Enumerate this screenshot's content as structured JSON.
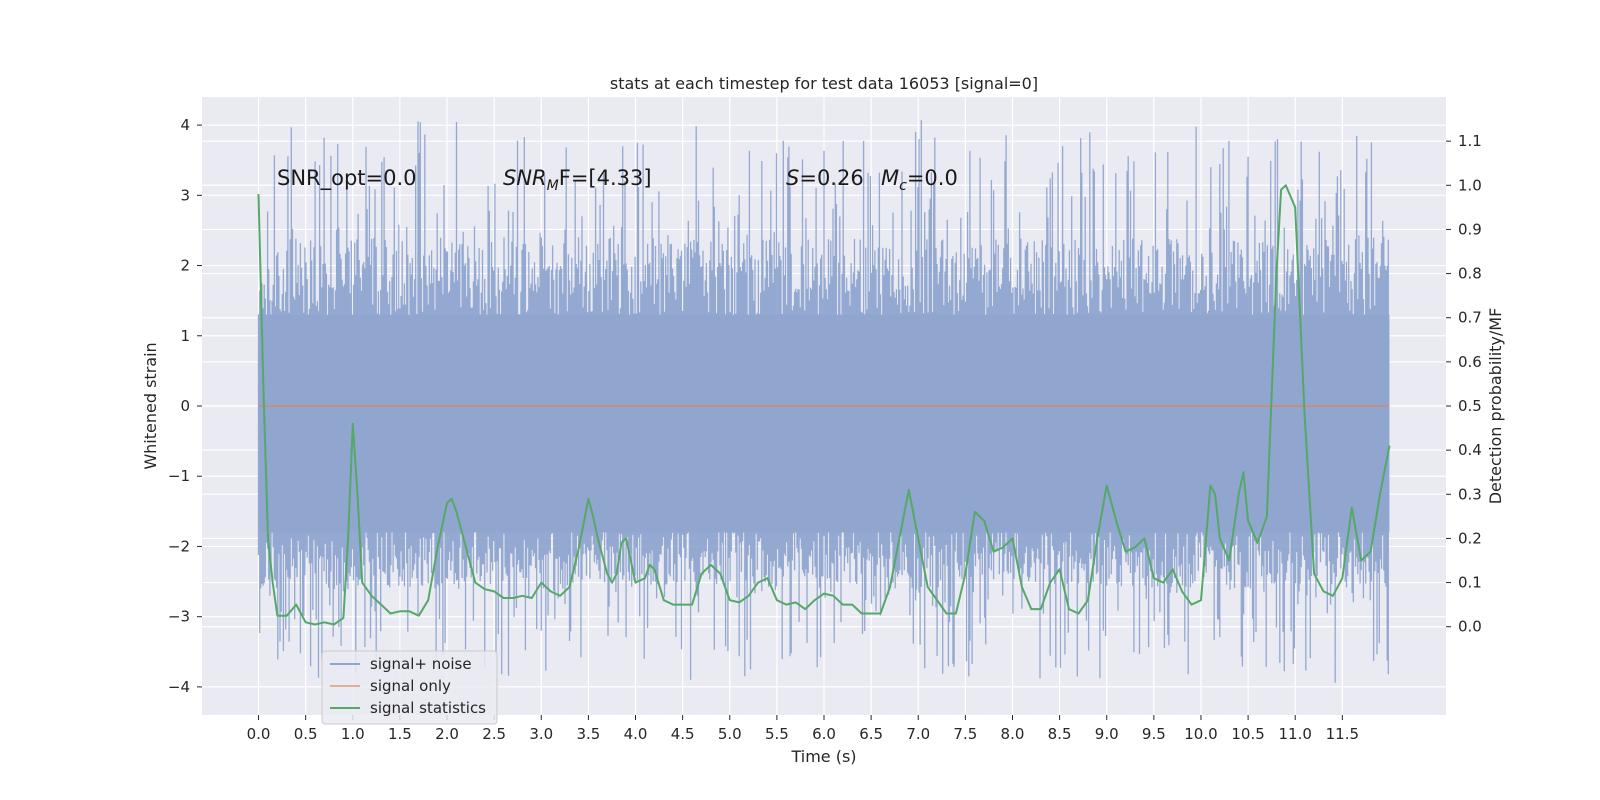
{
  "chart_data": {
    "type": "line",
    "title": "stats at each timestep for test data 16053 [signal=0]",
    "xlabel": "Time (s)",
    "ylabel": "Whitened strain",
    "ylabel_right": "Detection probability/MF",
    "xlim": [
      -0.6,
      12.6
    ],
    "ylim": [
      -4.4,
      4.4
    ],
    "ylim_right": [
      -0.2,
      1.2
    ],
    "x_ticks": [
      0.0,
      0.5,
      1.0,
      1.5,
      2.0,
      2.5,
      3.0,
      3.5,
      4.0,
      4.5,
      5.0,
      5.5,
      6.0,
      6.5,
      7.0,
      7.5,
      8.0,
      8.5,
      9.0,
      9.5,
      10.0,
      10.5,
      11.0,
      11.5
    ],
    "x_tick_labels": [
      "0.0",
      "0.5",
      "1.0",
      "1.5",
      "2.0",
      "2.5",
      "3.0",
      "3.5",
      "4.0",
      "4.5",
      "5.0",
      "5.5",
      "6.0",
      "6.5",
      "7.0",
      "7.5",
      "8.0",
      "8.5",
      "9.0",
      "9.5",
      "10.0",
      "10.5",
      "11.0",
      "11.5"
    ],
    "y_ticks": [
      -4,
      -3,
      -2,
      -1,
      0,
      1,
      2,
      3,
      4
    ],
    "y_tick_labels": [
      "−4",
      "−3",
      "−2",
      "−1",
      "0",
      "1",
      "2",
      "3",
      "4"
    ],
    "y_right_ticks": [
      0.0,
      0.1,
      0.2,
      0.3,
      0.4,
      0.5,
      0.6,
      0.7,
      0.8,
      0.9,
      1.0,
      1.1
    ],
    "y_right_tick_labels": [
      "0.0",
      "0.1",
      "0.2",
      "0.3",
      "0.4",
      "0.5",
      "0.6",
      "0.7",
      "0.8",
      "0.9",
      "1.0",
      "1.1"
    ],
    "grid": true,
    "legend_position": "bottom-left",
    "annotations": {
      "snr_opt": "SNR_opt=0.0",
      "snr_mf_main": "SNR",
      "snr_mf_sub": "M",
      "snr_mf_rest": "F=[4.33]",
      "s_main": "S",
      "s_rest": "=0.26",
      "mc_main": "M",
      "mc_sub": "c",
      "mc_rest": "=0.0"
    },
    "series": [
      {
        "name": "signal+ noise",
        "color": "#8fa5cf",
        "axis": "left",
        "style": "noise band",
        "x_range": [
          0.0,
          12.0
        ],
        "typical_upper": 1.3,
        "typical_lower": -1.8,
        "max": 4.1,
        "min": -3.95
      },
      {
        "name": "signal only",
        "color": "#dd8452",
        "axis": "left",
        "x": [
          0.0,
          12.0
        ],
        "values": [
          0.0,
          0.0
        ]
      },
      {
        "name": "signal statistics",
        "color": "#55a868",
        "axis": "right",
        "x": [
          0.0,
          0.05,
          0.1,
          0.15,
          0.2,
          0.3,
          0.4,
          0.5,
          0.6,
          0.7,
          0.8,
          0.9,
          0.95,
          1.0,
          1.05,
          1.1,
          1.2,
          1.3,
          1.4,
          1.5,
          1.6,
          1.7,
          1.8,
          1.9,
          2.0,
          2.05,
          2.1,
          2.2,
          2.3,
          2.4,
          2.5,
          2.6,
          2.7,
          2.8,
          2.9,
          3.0,
          3.1,
          3.2,
          3.3,
          3.4,
          3.5,
          3.55,
          3.6,
          3.7,
          3.75,
          3.8,
          3.85,
          3.9,
          4.0,
          4.1,
          4.15,
          4.2,
          4.3,
          4.4,
          4.5,
          4.6,
          4.7,
          4.8,
          4.9,
          5.0,
          5.1,
          5.2,
          5.3,
          5.4,
          5.5,
          5.6,
          5.7,
          5.8,
          5.9,
          6.0,
          6.1,
          6.2,
          6.3,
          6.4,
          6.5,
          6.6,
          6.7,
          6.8,
          6.9,
          7.0,
          7.1,
          7.2,
          7.3,
          7.4,
          7.5,
          7.6,
          7.7,
          7.8,
          7.9,
          8.0,
          8.1,
          8.2,
          8.3,
          8.4,
          8.5,
          8.6,
          8.7,
          8.8,
          8.9,
          9.0,
          9.1,
          9.2,
          9.3,
          9.4,
          9.5,
          9.6,
          9.7,
          9.8,
          9.9,
          10.0,
          10.1,
          10.15,
          10.2,
          10.3,
          10.4,
          10.45,
          10.5,
          10.6,
          10.7,
          10.8,
          10.85,
          10.9,
          11.0,
          11.1,
          11.2,
          11.3,
          11.4,
          11.5,
          11.6,
          11.7,
          11.8,
          11.9,
          12.0
        ],
        "values": [
          0.98,
          0.55,
          0.2,
          0.1,
          0.025,
          0.025,
          0.05,
          0.01,
          0.005,
          0.01,
          0.005,
          0.02,
          0.2,
          0.46,
          0.3,
          0.1,
          0.07,
          0.05,
          0.03,
          0.035,
          0.035,
          0.025,
          0.06,
          0.18,
          0.28,
          0.29,
          0.26,
          0.18,
          0.1,
          0.085,
          0.08,
          0.065,
          0.065,
          0.07,
          0.065,
          0.1,
          0.08,
          0.07,
          0.09,
          0.18,
          0.29,
          0.25,
          0.2,
          0.12,
          0.1,
          0.12,
          0.19,
          0.2,
          0.1,
          0.11,
          0.14,
          0.13,
          0.06,
          0.05,
          0.05,
          0.05,
          0.12,
          0.14,
          0.12,
          0.06,
          0.055,
          0.07,
          0.1,
          0.11,
          0.06,
          0.05,
          0.055,
          0.04,
          0.06,
          0.075,
          0.07,
          0.05,
          0.05,
          0.03,
          0.03,
          0.03,
          0.09,
          0.2,
          0.31,
          0.2,
          0.09,
          0.06,
          0.03,
          0.03,
          0.12,
          0.26,
          0.24,
          0.17,
          0.18,
          0.2,
          0.09,
          0.04,
          0.04,
          0.1,
          0.13,
          0.04,
          0.03,
          0.06,
          0.2,
          0.32,
          0.24,
          0.17,
          0.18,
          0.2,
          0.11,
          0.1,
          0.13,
          0.08,
          0.05,
          0.06,
          0.32,
          0.3,
          0.2,
          0.15,
          0.3,
          0.35,
          0.24,
          0.19,
          0.25,
          0.8,
          0.99,
          1.0,
          0.95,
          0.48,
          0.12,
          0.08,
          0.07,
          0.11,
          0.27,
          0.15,
          0.17,
          0.3,
          0.41
        ]
      }
    ]
  }
}
